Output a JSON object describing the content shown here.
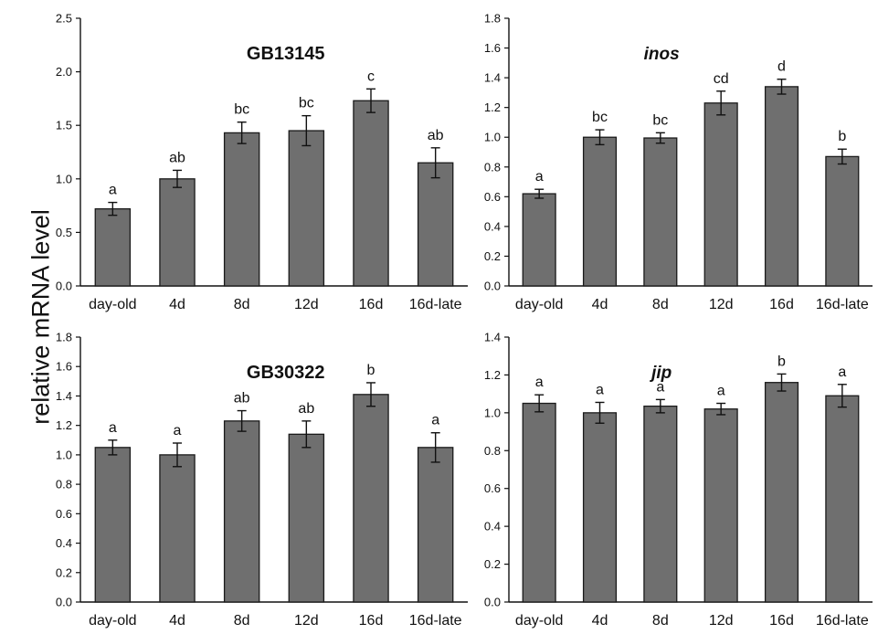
{
  "ylabel": "relative mRNA level",
  "colors": {
    "bar": "#6f6f6f",
    "bar_edge": "#1a1a1a",
    "axis": "#111111"
  },
  "chart_data": [
    {
      "type": "bar",
      "title": "GB13145",
      "title_style": "bold",
      "categories": [
        "day-old",
        "4d",
        "8d",
        "12d",
        "16d",
        "16d-late"
      ],
      "values": [
        0.72,
        1.0,
        1.43,
        1.45,
        1.73,
        1.15
      ],
      "errors": [
        0.06,
        0.08,
        0.1,
        0.14,
        0.11,
        0.14
      ],
      "letters": [
        "a",
        "ab",
        "bc",
        "bc",
        "c",
        "ab"
      ],
      "ylim": [
        0,
        2.5
      ],
      "yticks": [
        "0.0",
        "0.5",
        "1.0",
        "1.5",
        "2.0",
        "2.5"
      ]
    },
    {
      "type": "bar",
      "title": "inos",
      "title_style": "bold-italic",
      "categories": [
        "day-old",
        "4d",
        "8d",
        "12d",
        "16d",
        "16d-late"
      ],
      "values": [
        0.62,
        1.0,
        0.995,
        1.23,
        1.34,
        0.87
      ],
      "errors": [
        0.03,
        0.05,
        0.035,
        0.08,
        0.05,
        0.05
      ],
      "letters": [
        "a",
        "bc",
        "bc",
        "cd",
        "d",
        "b"
      ],
      "ylim": [
        0,
        1.8
      ],
      "yticks": [
        "0.0",
        "0.2",
        "0.4",
        "0.6",
        "0.8",
        "1.0",
        "1.2",
        "1.4",
        "1.6",
        "1.8"
      ]
    },
    {
      "type": "bar",
      "title": "GB30322",
      "title_style": "bold",
      "categories": [
        "day-old",
        "4d",
        "8d",
        "12d",
        "16d",
        "16d-late"
      ],
      "values": [
        1.05,
        1.0,
        1.23,
        1.14,
        1.41,
        1.05
      ],
      "errors": [
        0.05,
        0.08,
        0.07,
        0.09,
        0.08,
        0.1
      ],
      "letters": [
        "a",
        "a",
        "ab",
        "ab",
        "b",
        "a"
      ],
      "ylim": [
        0,
        1.8
      ],
      "yticks": [
        "0.0",
        "0.2",
        "0.4",
        "0.6",
        "0.8",
        "1.0",
        "1.2",
        "1.4",
        "1.6",
        "1.8"
      ]
    },
    {
      "type": "bar",
      "title": "jip",
      "title_style": "bold-italic",
      "categories": [
        "day-old",
        "4d",
        "8d",
        "12d",
        "16d",
        "16d-late"
      ],
      "values": [
        1.05,
        1.0,
        1.035,
        1.02,
        1.16,
        1.09
      ],
      "errors": [
        0.045,
        0.055,
        0.035,
        0.03,
        0.045,
        0.06
      ],
      "letters": [
        "a",
        "a",
        "a",
        "a",
        "b",
        "a"
      ],
      "ylim": [
        0,
        1.4
      ],
      "yticks": [
        "0.0",
        "0.2",
        "0.4",
        "0.6",
        "0.8",
        "1.0",
        "1.2",
        "1.4"
      ]
    }
  ]
}
